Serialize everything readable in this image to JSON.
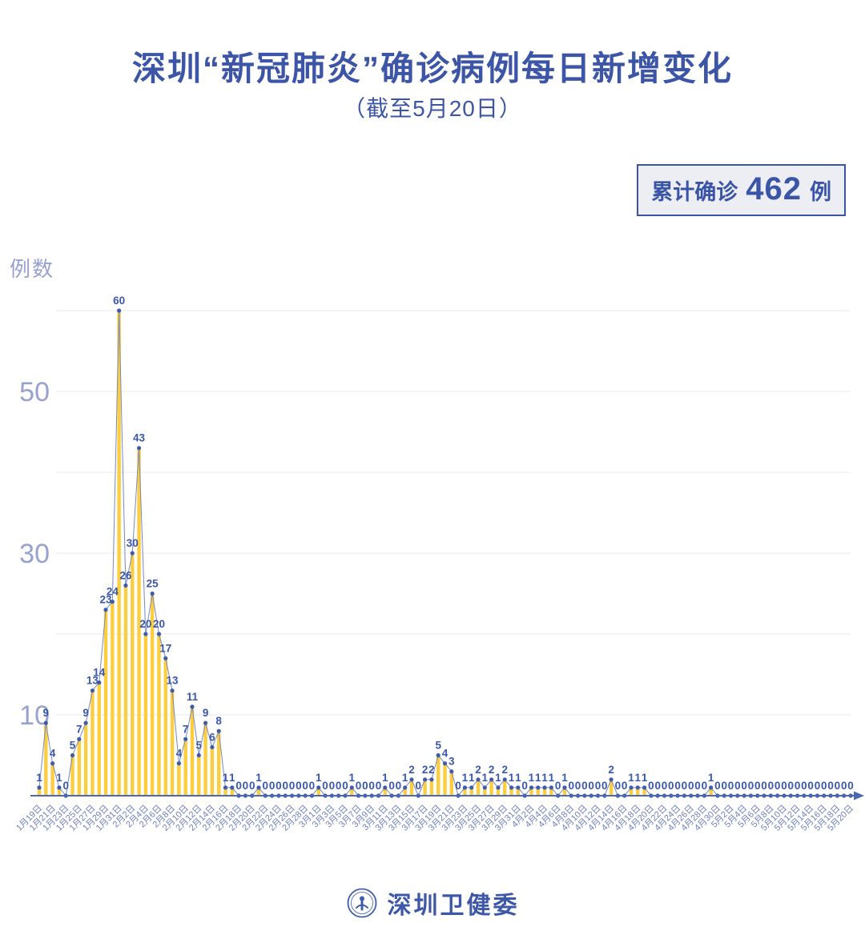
{
  "header": {
    "title": "深圳“新冠肺炎”确诊病例每日新增变化",
    "subtitle": "（截至5月20日）"
  },
  "badge": {
    "prefix": "累计确诊",
    "count": "462",
    "suffix": "例"
  },
  "footer": {
    "source": "深圳卫健委"
  },
  "chart_data": {
    "type": "bar+line",
    "title": "深圳“新冠肺炎”确诊病例每日新增变化",
    "subtitle": "（截至5月20日）",
    "cumulative_total": 462,
    "y_axis_title": "例数",
    "y_ticks": [
      10,
      30,
      50
    ],
    "gridlines": [
      10,
      20,
      30,
      40,
      50,
      60
    ],
    "ylim": [
      0,
      62
    ],
    "x_label_every": 2,
    "legend": "none",
    "colors": {
      "bar": "#fccd3c",
      "line": "#7588c5",
      "point": "#3e5cab",
      "value_label": "#3a57a9",
      "axis": "#4a68b5",
      "x_tick_label": "#6f80be",
      "y_tick_label": "#98a1cf",
      "gridline": "#e9e9ec",
      "title": "#3c55a6"
    },
    "dates": [
      "1月19日",
      "1月20日",
      "1月21日",
      "1月22日",
      "1月23日",
      "1月24日",
      "1月25日",
      "1月26日",
      "1月27日",
      "1月28日",
      "1月29日",
      "1月30日",
      "1月31日",
      "2月1日",
      "2月2日",
      "2月3日",
      "2月4日",
      "2月5日",
      "2月6日",
      "2月7日",
      "2月8日",
      "2月9日",
      "2月10日",
      "2月11日",
      "2月12日",
      "2月13日",
      "2月14日",
      "2月15日",
      "2月16日",
      "2月17日",
      "2月18日",
      "2月19日",
      "2月20日",
      "2月21日",
      "2月22日",
      "2月23日",
      "2月24日",
      "2月25日",
      "2月26日",
      "2月27日",
      "2月28日",
      "2月29日",
      "3月1日",
      "3月2日",
      "3月3日",
      "3月4日",
      "3月5日",
      "3月6日",
      "3月7日",
      "3月8日",
      "3月9日",
      "3月10日",
      "3月11日",
      "3月12日",
      "3月13日",
      "3月14日",
      "3月15日",
      "3月16日",
      "3月17日",
      "3月18日",
      "3月19日",
      "3月20日",
      "3月21日",
      "3月22日",
      "3月23日",
      "3月24日",
      "3月25日",
      "3月26日",
      "3月27日",
      "3月28日",
      "3月29日",
      "3月30日",
      "3月31日",
      "4月1日",
      "4月2日",
      "4月3日",
      "4月4日",
      "4月5日",
      "4月6日",
      "4月7日",
      "4月8日",
      "4月9日",
      "4月10日",
      "4月11日",
      "4月12日",
      "4月13日",
      "4月14日",
      "4月15日",
      "4月16日",
      "4月17日",
      "4月18日",
      "4月19日",
      "4月20日",
      "4月21日",
      "4月22日",
      "4月23日",
      "4月24日",
      "4月25日",
      "4月26日",
      "4月27日",
      "4月28日",
      "4月29日",
      "4月30日",
      "5月1日",
      "5月2日",
      "5月3日",
      "5月4日",
      "5月5日",
      "5月6日",
      "5月7日",
      "5月8日",
      "5月9日",
      "5月10日",
      "5月11日",
      "5月12日",
      "5月13日",
      "5月14日",
      "5月15日",
      "5月16日",
      "5月17日",
      "5月18日",
      "5月19日",
      "5月20日"
    ],
    "values": [
      1,
      9,
      4,
      1,
      0,
      5,
      7,
      9,
      13,
      14,
      23,
      24,
      60,
      26,
      30,
      43,
      20,
      25,
      20,
      17,
      13,
      4,
      7,
      11,
      5,
      9,
      6,
      8,
      1,
      1,
      0,
      0,
      0,
      1,
      0,
      0,
      0,
      0,
      0,
      0,
      0,
      0,
      1,
      0,
      0,
      0,
      0,
      1,
      0,
      0,
      0,
      0,
      1,
      0,
      0,
      1,
      2,
      0,
      2,
      2,
      5,
      4,
      3,
      0,
      1,
      1,
      2,
      1,
      2,
      1,
      2,
      1,
      1,
      0,
      1,
      1,
      1,
      1,
      0,
      1,
      0,
      0,
      0,
      0,
      0,
      0,
      2,
      0,
      0,
      1,
      1,
      1,
      0,
      0,
      0,
      0,
      0,
      0,
      0,
      0,
      0,
      1,
      0,
      0,
      0,
      0,
      0,
      0,
      0,
      0,
      0,
      0,
      0,
      0,
      0,
      0,
      0,
      0,
      0,
      0,
      0,
      0,
      0
    ]
  }
}
